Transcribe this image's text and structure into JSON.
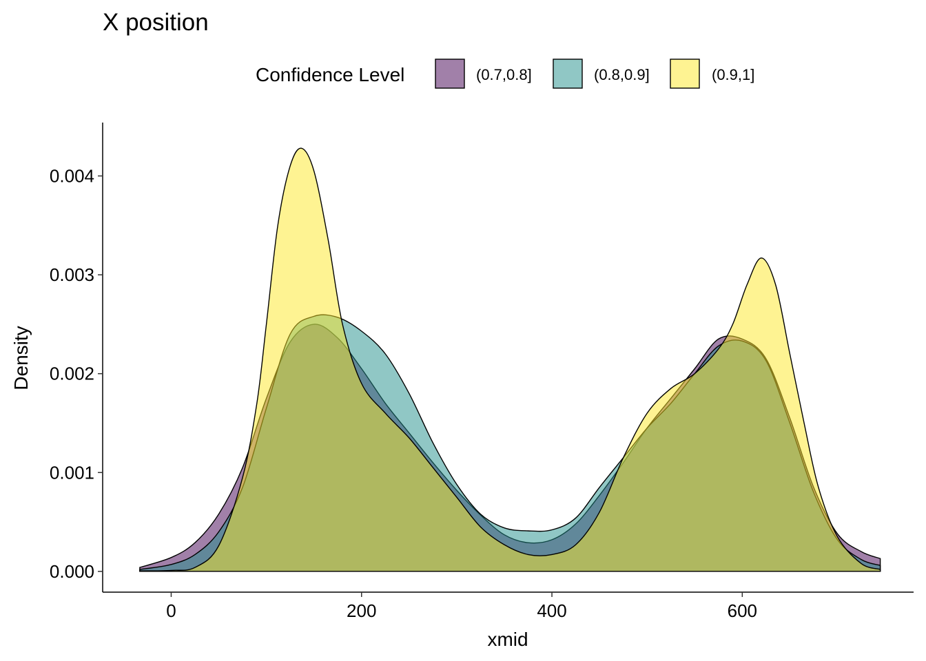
{
  "chart_data": {
    "type": "area",
    "title": "X position",
    "xlabel": "xmid",
    "ylabel": "Density",
    "xlim": [
      -72,
      780
    ],
    "ylim": [
      -0.00021,
      0.00454
    ],
    "x_ticks": [
      0,
      200,
      400,
      600
    ],
    "x_tick_labels": [
      "0",
      "200",
      "400",
      "600"
    ],
    "y_ticks": [
      0,
      0.001,
      0.002,
      0.003,
      0.004
    ],
    "y_tick_labels": [
      "0.000",
      "0.001",
      "0.002",
      "0.003",
      "0.004"
    ],
    "legend": {
      "title": "Confidence Level",
      "position": "top"
    },
    "grid": false,
    "series": [
      {
        "name": "(0.7,0.8]",
        "color": "#440154",
        "x": [
          -33,
          0,
          25,
          50,
          75,
          100,
          125,
          150,
          175,
          200,
          225,
          250,
          275,
          300,
          325,
          350,
          375,
          400,
          425,
          450,
          475,
          500,
          525,
          550,
          575,
          600,
          625,
          650,
          675,
          700,
          725,
          745
        ],
        "y": [
          4e-05,
          0.00014,
          0.00029,
          0.00058,
          0.00105,
          0.00175,
          0.00232,
          0.0025,
          0.00236,
          0.00205,
          0.0017,
          0.0014,
          0.0011,
          0.00082,
          0.00057,
          0.00037,
          0.00029,
          0.00032,
          0.00048,
          0.00077,
          0.0011,
          0.00145,
          0.00175,
          0.00205,
          0.00235,
          0.00235,
          0.00215,
          0.00155,
          0.00085,
          0.00038,
          0.0002,
          0.00013
        ]
      },
      {
        "name": "(0.8,0.9]",
        "color": "#21908C",
        "x": [
          -33,
          0,
          25,
          50,
          75,
          100,
          125,
          150,
          175,
          200,
          225,
          250,
          275,
          300,
          325,
          350,
          375,
          400,
          425,
          450,
          475,
          500,
          525,
          550,
          575,
          600,
          625,
          650,
          675,
          700,
          725,
          745
        ],
        "y": [
          2e-05,
          7e-05,
          0.00017,
          0.0004,
          0.00085,
          0.00165,
          0.0024,
          0.00258,
          0.00257,
          0.00243,
          0.0022,
          0.0018,
          0.0013,
          0.00088,
          0.00058,
          0.00044,
          0.00041,
          0.00042,
          0.00054,
          0.00085,
          0.00115,
          0.00145,
          0.0017,
          0.002,
          0.00228,
          0.00233,
          0.00213,
          0.0015,
          0.0008,
          0.00032,
          0.00012,
          6e-05
        ]
      },
      {
        "name": "(0.9,1]",
        "color": "#FDE725",
        "x": [
          -33,
          0,
          25,
          50,
          75,
          90,
          100,
          112,
          125,
          137,
          150,
          165,
          180,
          200,
          225,
          250,
          275,
          300,
          325,
          350,
          375,
          400,
          425,
          450,
          475,
          500,
          525,
          550,
          575,
          590,
          605,
          620,
          635,
          650,
          665,
          680,
          700,
          725,
          745
        ],
        "y": [
          5e-06,
          1e-05,
          4e-05,
          0.00026,
          0.00095,
          0.0017,
          0.0025,
          0.0035,
          0.0041,
          0.00428,
          0.00405,
          0.00335,
          0.0025,
          0.0019,
          0.0016,
          0.00135,
          0.00105,
          0.00075,
          0.00045,
          0.00027,
          0.00017,
          0.00017,
          0.00027,
          0.0006,
          0.00115,
          0.0016,
          0.00185,
          0.002,
          0.00225,
          0.0025,
          0.0029,
          0.00317,
          0.0029,
          0.0022,
          0.0015,
          0.00085,
          0.00035,
          8e-05,
          2e-05
        ]
      }
    ]
  }
}
